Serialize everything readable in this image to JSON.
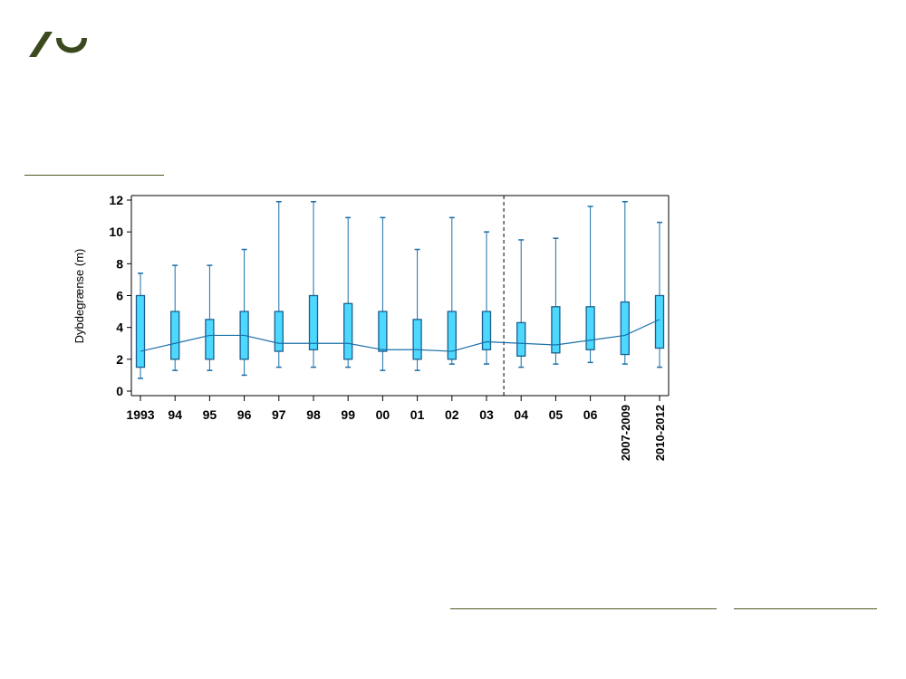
{
  "colors": {
    "logo": "#3b4a1e",
    "rule": "#4a5a23",
    "box_fill": "#4dd9ff",
    "box_stroke": "#1a5f8f",
    "whisker": "#1a6fa8",
    "mean_line": "#1a6fa8",
    "axis": "#000000"
  },
  "chart_data": {
    "type": "box",
    "ylabel": "Dybdegrænse (m)",
    "ylim": [
      0,
      12
    ],
    "yticks": [
      "0",
      "2",
      "4",
      "6",
      "8",
      "10",
      "12"
    ],
    "categories": [
      "1993",
      "94",
      "95",
      "96",
      "97",
      "98",
      "99",
      "00",
      "01",
      "02",
      "03",
      "04",
      "05",
      "06",
      "2007-2009",
      "2010-2012"
    ],
    "min": [
      0.8,
      1.3,
      1.3,
      1.0,
      1.5,
      1.5,
      1.5,
      1.3,
      1.3,
      1.7,
      1.7,
      1.5,
      1.7,
      1.8,
      1.7,
      1.5
    ],
    "q1": [
      1.5,
      2.0,
      2.0,
      2.0,
      2.5,
      2.6,
      2.0,
      2.5,
      2.0,
      2.0,
      2.6,
      2.2,
      2.4,
      2.6,
      2.3,
      2.7
    ],
    "q3": [
      6.0,
      5.0,
      4.5,
      5.0,
      5.0,
      6.0,
      5.5,
      5.0,
      4.5,
      5.0,
      5.0,
      4.3,
      5.3,
      5.3,
      5.6,
      6.0
    ],
    "max": [
      7.4,
      7.9,
      7.9,
      8.9,
      11.9,
      11.9,
      10.9,
      10.9,
      8.9,
      10.9,
      10.0,
      9.5,
      9.6,
      11.6,
      11.9,
      10.6
    ],
    "median": [
      2.5,
      3.0,
      3.5,
      3.5,
      3.0,
      3.0,
      3.0,
      2.6,
      2.6,
      2.5,
      3.1,
      3.0,
      2.9,
      3.2,
      3.5,
      4.5
    ],
    "period_divider_after": "03",
    "grid": false,
    "legend": "none"
  }
}
